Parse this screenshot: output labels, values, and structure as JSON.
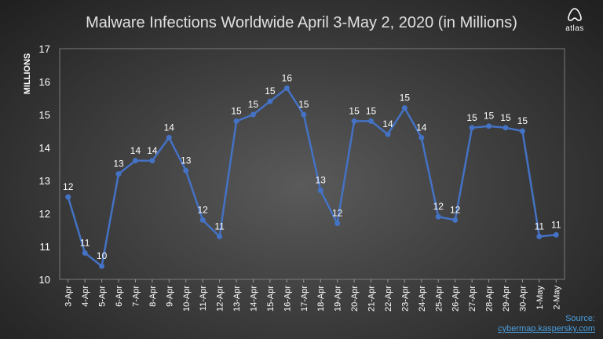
{
  "title": "Malware Infections Worldwide April 3-May 2, 2020 (in Millions)",
  "logo_text": "atlas",
  "source_label": "Source:",
  "source_link": "cybermap.kaspersky.com",
  "colors": {
    "line": "#4472c4",
    "label": "#ffffff",
    "axis_text": "#ffffff"
  },
  "chart_data": {
    "type": "line",
    "title": "Malware Infections Worldwide April 3-May 2, 2020 (in Millions)",
    "xlabel": "",
    "ylabel": "MILLIONS",
    "ylim": [
      10,
      17
    ],
    "yticks": [
      10,
      11,
      12,
      13,
      14,
      15,
      16,
      17
    ],
    "grid": false,
    "categories": [
      "3-Apr",
      "4-Apr",
      "5-Apr",
      "6-Apr",
      "7-Apr",
      "8-Apr",
      "9-Apr",
      "10-Apr",
      "11-Apr",
      "12-Apr",
      "13-Apr",
      "14-Apr",
      "15-Apr",
      "16-Apr",
      "17-Apr",
      "18-Apr",
      "19-Apr",
      "20-Apr",
      "21-Apr",
      "22-Apr",
      "23-Apr",
      "24-Apr",
      "25-Apr",
      "26-Apr",
      "27-Apr",
      "28-Apr",
      "29-Apr",
      "30-Apr",
      "1-May",
      "2-May"
    ],
    "series": [
      {
        "values": [
          12.5,
          10.8,
          10.4,
          13.2,
          13.6,
          13.6,
          14.3,
          13.3,
          11.8,
          11.3,
          14.8,
          15.0,
          15.4,
          15.8,
          15.0,
          12.7,
          11.7,
          14.8,
          14.8,
          14.4,
          15.2,
          14.3,
          11.9,
          11.8,
          14.6,
          14.65,
          14.6,
          14.5,
          11.3,
          11.35
        ],
        "labels": [
          "12",
          "11",
          "10",
          "13",
          "14",
          "14",
          "14",
          "13",
          "12",
          "11",
          "15",
          "15",
          "15",
          "16",
          "15",
          "13",
          "12",
          "15",
          "15",
          "14",
          "15",
          "14",
          "12",
          "12",
          "15",
          "15",
          "15",
          "15",
          "11",
          "11"
        ]
      }
    ]
  }
}
